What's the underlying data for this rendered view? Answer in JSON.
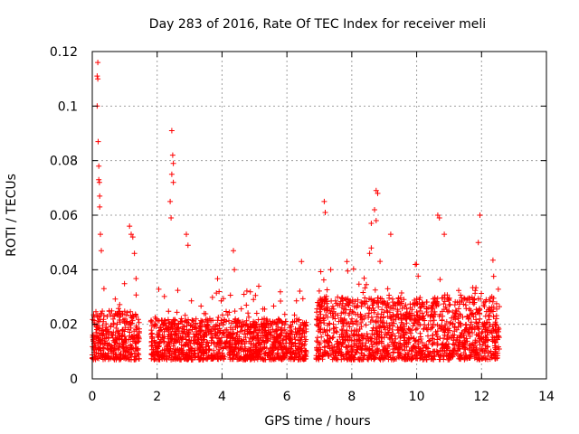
{
  "chart_data": {
    "type": "scatter",
    "title": "Day 283 of 2016, Rate Of TEC Index for receiver meli",
    "xlabel": "GPS time / hours",
    "ylabel": "ROTI / TECUs",
    "xlim": [
      0,
      14
    ],
    "ylim": [
      0,
      0.12
    ],
    "xticks": [
      0,
      2,
      4,
      6,
      8,
      10,
      12,
      14
    ],
    "xtick_labels": [
      "0",
      "2",
      "4",
      "6",
      "8",
      "10",
      "12",
      "14"
    ],
    "yticks": [
      0,
      0.02,
      0.04,
      0.06,
      0.08,
      0.1,
      0.12
    ],
    "ytick_labels": [
      "0",
      "0.02",
      "0.04",
      "0.06",
      "0.08",
      "0.1",
      "0.12"
    ],
    "grid": true,
    "marker": "+",
    "color": "#ff0000",
    "series": [
      {
        "name": "ROTI",
        "segments": [
          {
            "x": [
              0.0,
              1.45
            ],
            "typical": [
              0.007,
              0.025
            ]
          },
          {
            "x": [
              1.8,
              6.6
            ],
            "typical": [
              0.007,
              0.022
            ]
          },
          {
            "x": [
              6.9,
              12.55
            ],
            "typical": [
              0.007,
              0.03
            ]
          }
        ],
        "notable_points": [
          {
            "x": 0.17,
            "y": 0.116
          },
          {
            "x": 0.15,
            "y": 0.111
          },
          {
            "x": 0.17,
            "y": 0.11
          },
          {
            "x": 0.15,
            "y": 0.1
          },
          {
            "x": 0.18,
            "y": 0.087
          },
          {
            "x": 0.2,
            "y": 0.078
          },
          {
            "x": 0.2,
            "y": 0.073
          },
          {
            "x": 0.22,
            "y": 0.072
          },
          {
            "x": 0.23,
            "y": 0.067
          },
          {
            "x": 0.23,
            "y": 0.063
          },
          {
            "x": 0.25,
            "y": 0.053
          },
          {
            "x": 0.28,
            "y": 0.047
          },
          {
            "x": 1.15,
            "y": 0.056
          },
          {
            "x": 1.2,
            "y": 0.053
          },
          {
            "x": 1.25,
            "y": 0.052
          },
          {
            "x": 1.3,
            "y": 0.046
          },
          {
            "x": 2.45,
            "y": 0.091
          },
          {
            "x": 2.48,
            "y": 0.082
          },
          {
            "x": 2.5,
            "y": 0.079
          },
          {
            "x": 2.45,
            "y": 0.075
          },
          {
            "x": 2.5,
            "y": 0.072
          },
          {
            "x": 2.4,
            "y": 0.065
          },
          {
            "x": 2.43,
            "y": 0.059
          },
          {
            "x": 2.9,
            "y": 0.053
          },
          {
            "x": 2.95,
            "y": 0.049
          },
          {
            "x": 4.35,
            "y": 0.047
          },
          {
            "x": 4.38,
            "y": 0.04
          },
          {
            "x": 7.15,
            "y": 0.065
          },
          {
            "x": 7.18,
            "y": 0.061
          },
          {
            "x": 8.75,
            "y": 0.069
          },
          {
            "x": 8.8,
            "y": 0.068
          },
          {
            "x": 8.7,
            "y": 0.062
          },
          {
            "x": 8.75,
            "y": 0.058
          },
          {
            "x": 8.6,
            "y": 0.057
          },
          {
            "x": 9.2,
            "y": 0.053
          },
          {
            "x": 8.6,
            "y": 0.048
          },
          {
            "x": 8.55,
            "y": 0.046
          },
          {
            "x": 10.65,
            "y": 0.06
          },
          {
            "x": 10.7,
            "y": 0.059
          },
          {
            "x": 10.85,
            "y": 0.053
          },
          {
            "x": 11.95,
            "y": 0.06
          },
          {
            "x": 11.9,
            "y": 0.05
          },
          {
            "x": 6.45,
            "y": 0.043
          },
          {
            "x": 7.85,
            "y": 0.043
          },
          {
            "x": 7.35,
            "y": 0.04
          }
        ]
      }
    ]
  }
}
